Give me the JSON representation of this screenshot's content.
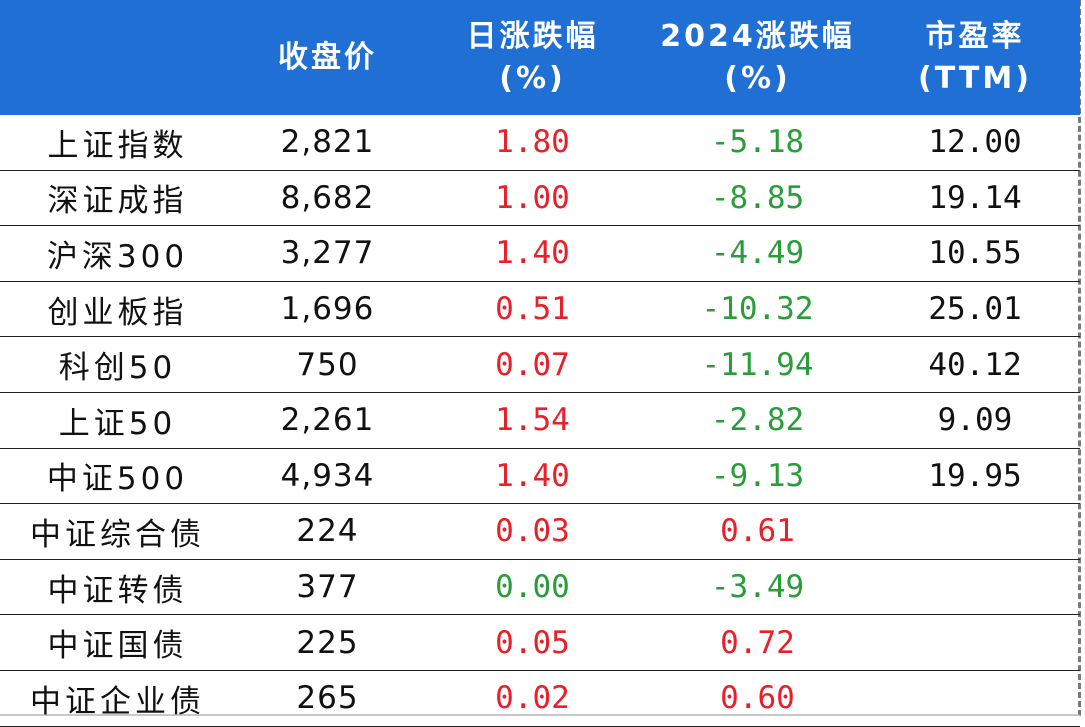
{
  "headers": [
    {
      "line1": "",
      "line2": ""
    },
    {
      "line1": "收盘价",
      "line2": ""
    },
    {
      "line1": "日涨跌幅",
      "line2": "(%)"
    },
    {
      "line1": "2024涨跌幅",
      "line2": "(%)"
    },
    {
      "line1": "市盈率",
      "line2": "(TTM)"
    }
  ],
  "rows": [
    {
      "name": "上证指数",
      "close": "2,821",
      "daily": "1.80",
      "ytd": "-5.18",
      "pe": "12.00",
      "daily_dir": "up",
      "ytd_dir": "down"
    },
    {
      "name": "深证成指",
      "close": "8,682",
      "daily": "1.00",
      "ytd": "-8.85",
      "pe": "19.14",
      "daily_dir": "up",
      "ytd_dir": "down"
    },
    {
      "name": "沪深300",
      "close": "3,277",
      "daily": "1.40",
      "ytd": "-4.49",
      "pe": "10.55",
      "daily_dir": "up",
      "ytd_dir": "down"
    },
    {
      "name": "创业板指",
      "close": "1,696",
      "daily": "0.51",
      "ytd": "-10.32",
      "pe": "25.01",
      "daily_dir": "up",
      "ytd_dir": "down"
    },
    {
      "name": "科创50",
      "close": "750",
      "daily": "0.07",
      "ytd": "-11.94",
      "pe": "40.12",
      "daily_dir": "up",
      "ytd_dir": "down"
    },
    {
      "name": "上证50",
      "close": "2,261",
      "daily": "1.54",
      "ytd": "-2.82",
      "pe": "9.09",
      "daily_dir": "up",
      "ytd_dir": "down"
    },
    {
      "name": "中证500",
      "close": "4,934",
      "daily": "1.40",
      "ytd": "-9.13",
      "pe": "19.95",
      "daily_dir": "up",
      "ytd_dir": "down"
    },
    {
      "name": "中证综合债",
      "close": "224",
      "daily": "0.03",
      "ytd": "0.61",
      "pe": "",
      "daily_dir": "up",
      "ytd_dir": "up"
    },
    {
      "name": "中证转债",
      "close": "377",
      "daily": "0.00",
      "ytd": "-3.49",
      "pe": "",
      "daily_dir": "flat",
      "ytd_dir": "down"
    },
    {
      "name": "中证国债",
      "close": "225",
      "daily": "0.05",
      "ytd": "0.72",
      "pe": "",
      "daily_dir": "up",
      "ytd_dir": "up"
    },
    {
      "name": "中证企业债",
      "close": "265",
      "daily": "0.02",
      "ytd": "0.60",
      "pe": "",
      "daily_dir": "up",
      "ytd_dir": "up"
    }
  ],
  "colors": {
    "header_bg": "#1f6fd4",
    "up": "#e8202a",
    "down": "#2a9c3a"
  }
}
